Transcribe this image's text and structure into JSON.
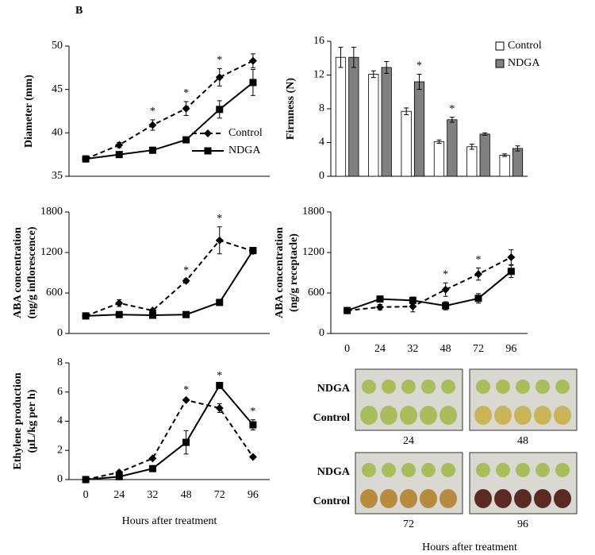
{
  "panel_label": "B",
  "chart_data": [
    {
      "type": "line",
      "ylabel": [
        "Diameter (mm)"
      ],
      "categories": [
        null,
        null,
        null,
        null,
        null,
        null
      ],
      "ylim": [
        35,
        50
      ],
      "yticks": [
        35,
        40,
        45,
        50
      ],
      "legend": "center-right",
      "series": [
        {
          "name": "Control",
          "color": "#000000",
          "dash": true,
          "marker": "diamond",
          "values": [
            37,
            38.6,
            40.9,
            42.8,
            46.4,
            48.3
          ],
          "errors": [
            0.2,
            0.3,
            0.6,
            0.8,
            1.0,
            0.8
          ]
        },
        {
          "name": "NDGA",
          "color": "#000000",
          "dash": false,
          "marker": "square",
          "values": [
            37,
            37.5,
            38,
            39.2,
            42.7,
            45.8
          ],
          "errors": [
            0.2,
            0.2,
            0.2,
            0.3,
            1.0,
            1.5
          ]
        }
      ],
      "significance": [
        null,
        null,
        "*",
        "*",
        "*",
        null
      ]
    },
    {
      "type": "bar",
      "ylabel": [
        "Firmness (N)"
      ],
      "categories": [
        null,
        null,
        null,
        null,
        null,
        null
      ],
      "ylim": [
        0,
        16
      ],
      "yticks": [
        0,
        4,
        8,
        12,
        16
      ],
      "legend": "top-right",
      "series": [
        {
          "name": "Control",
          "color": "#ffffff",
          "values": [
            14.1,
            12.1,
            7.7,
            4.1,
            3.5,
            2.5
          ],
          "errors": [
            1.2,
            0.4,
            0.4,
            0.2,
            0.3,
            0.15
          ]
        },
        {
          "name": "NDGA",
          "color": "#808080",
          "values": [
            14.1,
            12.9,
            11.2,
            6.7,
            5.0,
            3.3
          ],
          "errors": [
            1.2,
            0.7,
            0.9,
            0.3,
            0.15,
            0.3
          ]
        }
      ],
      "significance": [
        null,
        null,
        "*",
        "*",
        null,
        null
      ]
    },
    {
      "type": "line",
      "ylabel": [
        "ABA concentration",
        "(ng/g inflorescence)"
      ],
      "categories": [
        null,
        null,
        null,
        null,
        null,
        null
      ],
      "ylim": [
        0,
        1800
      ],
      "yticks": [
        0,
        600,
        1200,
        1800
      ],
      "series": [
        {
          "color": "#000000",
          "dash": true,
          "marker": "diamond",
          "values": [
            260,
            450,
            340,
            780,
            1380,
            1220
          ],
          "errors": [
            20,
            50,
            20,
            30,
            200,
            40
          ]
        },
        {
          "color": "#000000",
          "dash": false,
          "marker": "square",
          "values": [
            260,
            280,
            270,
            280,
            460,
            1230
          ],
          "errors": [
            20,
            15,
            15,
            15,
            20,
            40
          ]
        }
      ],
      "significance": [
        null,
        null,
        null,
        "*",
        "*",
        null
      ]
    },
    {
      "type": "line",
      "ylabel": [
        "ABA concentration",
        "(ng/g receptacle)"
      ],
      "categories": [
        "0",
        "24",
        "32",
        "48",
        "72",
        "96"
      ],
      "ylim": [
        0,
        1800
      ],
      "yticks": [
        0,
        600,
        1200,
        1800
      ],
      "series": [
        {
          "color": "#000000",
          "dash": true,
          "marker": "diamond",
          "values": [
            340,
            390,
            400,
            650,
            880,
            1130
          ],
          "errors": [
            30,
            40,
            80,
            100,
            90,
            110
          ]
        },
        {
          "color": "#000000",
          "dash": false,
          "marker": "square",
          "values": [
            340,
            510,
            490,
            410,
            520,
            920
          ],
          "errors": [
            30,
            40,
            50,
            60,
            70,
            90
          ]
        }
      ],
      "significance": [
        null,
        null,
        null,
        "*",
        "*",
        null
      ]
    },
    {
      "type": "line",
      "ylabel": [
        "Ethylene production",
        "(μL/kg per h)"
      ],
      "categories": [
        "0",
        "24",
        "32",
        "48",
        "72",
        "96"
      ],
      "xlabel": "Hours after treatment",
      "ylim": [
        0,
        8
      ],
      "yticks": [
        0,
        2,
        4,
        6,
        8
      ],
      "series": [
        {
          "color": "#000000",
          "dash": true,
          "marker": "diamond",
          "values": [
            0,
            0.5,
            1.45,
            5.45,
            4.9,
            1.55
          ],
          "errors": [
            0,
            0.05,
            0.05,
            0.1,
            0.3,
            0.1
          ]
        },
        {
          "color": "#000000",
          "dash": false,
          "marker": "square",
          "values": [
            0,
            0.2,
            0.75,
            2.55,
            6.45,
            3.75
          ],
          "errors": [
            0,
            0.05,
            0.05,
            0.8,
            0.1,
            0.35
          ]
        }
      ],
      "significance": [
        null,
        null,
        null,
        "*",
        "*",
        "*"
      ]
    }
  ],
  "photo_panel": {
    "groups": [
      {
        "row_labels": [
          "NDGA",
          "Control"
        ],
        "panels": [
          "24",
          "48"
        ]
      },
      {
        "row_labels": [
          "NDGA",
          "Control"
        ],
        "panels": [
          "72",
          "96"
        ]
      }
    ],
    "xlabel": "Hours after treatment"
  }
}
